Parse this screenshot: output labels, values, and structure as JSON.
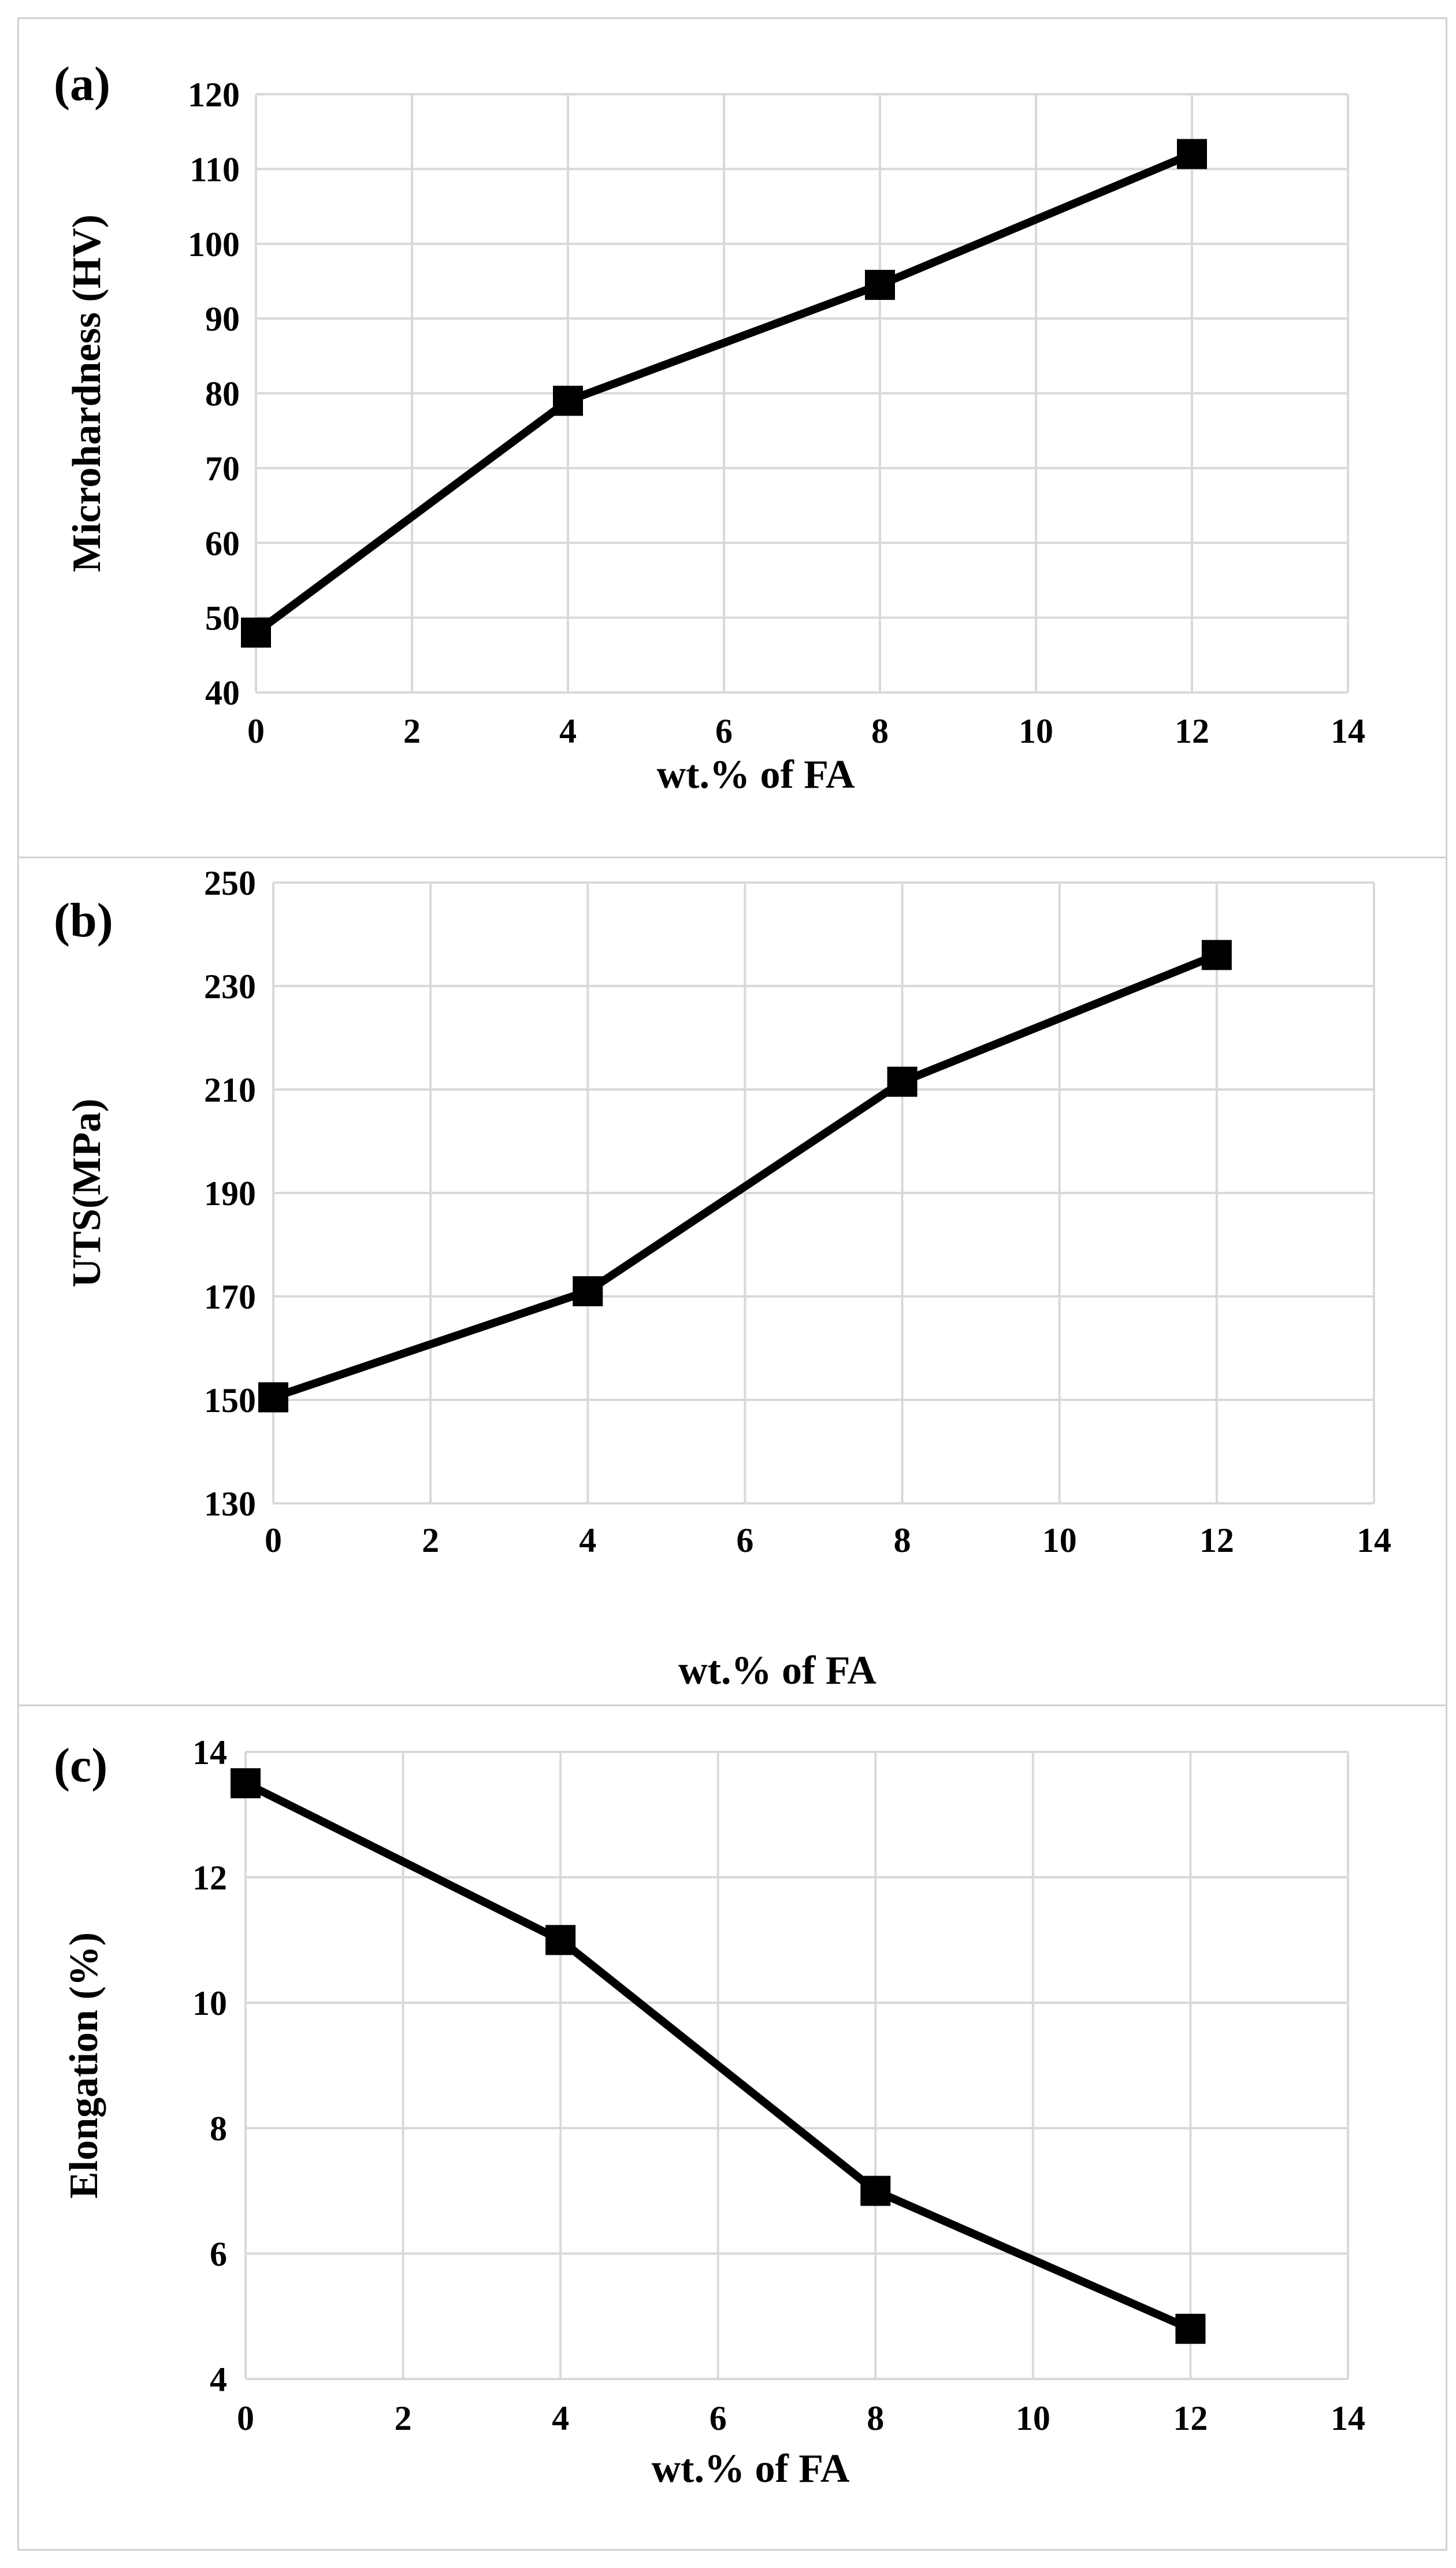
{
  "chart_data": [
    {
      "type": "line",
      "panel_label": "(a)",
      "title": "",
      "xlabel": "wt.% of FA",
      "ylabel": "Microhardness (HV)",
      "xlim": [
        0,
        14
      ],
      "ylim": [
        40,
        120
      ],
      "x_ticks": [
        0,
        2,
        4,
        6,
        8,
        10,
        12,
        14
      ],
      "y_ticks": [
        40,
        50,
        60,
        70,
        80,
        90,
        100,
        110,
        120
      ],
      "grid": true,
      "legend": "none",
      "series": [
        {
          "name": "Microhardness",
          "color": "#000000",
          "marker": "square",
          "x": [
            0,
            4,
            8,
            12
          ],
          "values": [
            48,
            79,
            94.5,
            112
          ]
        }
      ]
    },
    {
      "type": "line",
      "panel_label": "(b)",
      "title": "",
      "xlabel": "wt.% of FA",
      "ylabel": "UTS(MPa)",
      "xlim": [
        0,
        14
      ],
      "ylim": [
        130,
        250
      ],
      "x_ticks": [
        0,
        2,
        4,
        6,
        8,
        10,
        12,
        14
      ],
      "y_ticks": [
        130,
        150,
        170,
        190,
        210,
        230,
        250
      ],
      "grid": true,
      "legend": "none",
      "series": [
        {
          "name": "UTS",
          "color": "#000000",
          "marker": "square",
          "x": [
            0,
            4,
            8,
            12
          ],
          "values": [
            150.5,
            171,
            211.5,
            236
          ]
        }
      ]
    },
    {
      "type": "line",
      "panel_label": "(c)",
      "title": "",
      "xlabel": "wt.% of FA",
      "ylabel": "Elongation (%)",
      "xlim": [
        0,
        14
      ],
      "ylim": [
        4,
        14
      ],
      "x_ticks": [
        0,
        2,
        4,
        6,
        8,
        10,
        12,
        14
      ],
      "y_ticks": [
        4,
        6,
        8,
        10,
        12,
        14
      ],
      "grid": true,
      "legend": "none",
      "series": [
        {
          "name": "Elongation",
          "color": "#000000",
          "marker": "square",
          "x": [
            0,
            4,
            8,
            12
          ],
          "values": [
            13.5,
            11,
            7,
            4.8
          ]
        }
      ]
    }
  ]
}
